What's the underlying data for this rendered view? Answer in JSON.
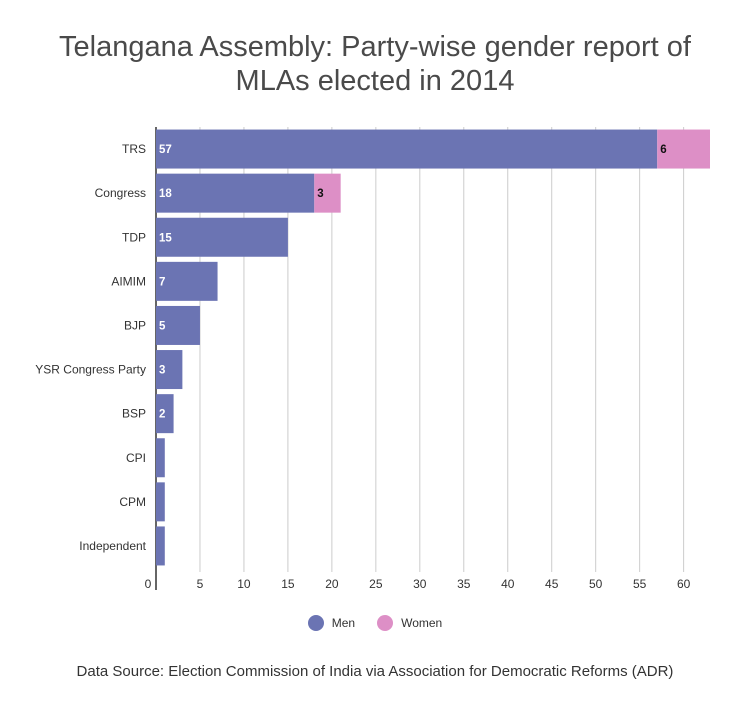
{
  "title_lines": [
    "Telangana Assembly: Party-wise gender report of",
    "MLAs elected in 2014"
  ],
  "source": "Data Source: Election Commission of India via Association for Democratic Reforms (ADR)",
  "colors": {
    "men": "#6b74b3",
    "women": "#dd8fc6",
    "grid": "#cccccc",
    "axis": "#333333"
  },
  "chart_data": {
    "type": "bar",
    "orientation": "horizontal",
    "stacked": true,
    "categories": [
      "TRS",
      "Congress",
      "TDP",
      "AIMIM",
      "BJP",
      "YSR Congress Party",
      "BSP",
      "CPI",
      "CPM",
      "Independent"
    ],
    "series": [
      {
        "name": "Men",
        "values": [
          57,
          18,
          15,
          7,
          5,
          3,
          2,
          1,
          1,
          1
        ]
      },
      {
        "name": "Women",
        "values": [
          6,
          3,
          0,
          0,
          0,
          0,
          0,
          0,
          0,
          0
        ]
      }
    ],
    "data_labels": {
      "Men": [
        "57",
        "18",
        "15",
        "7",
        "5",
        "3",
        "2",
        "",
        "",
        ""
      ],
      "Women": [
        "6",
        "3",
        "",
        "",
        "",
        "",
        "",
        "",
        "",
        ""
      ]
    },
    "x_ticks": [
      0,
      5,
      10,
      15,
      20,
      25,
      30,
      35,
      40,
      45,
      50,
      55,
      60
    ],
    "xlim": [
      0,
      63
    ],
    "grid": true,
    "legend_position": "bottom"
  }
}
